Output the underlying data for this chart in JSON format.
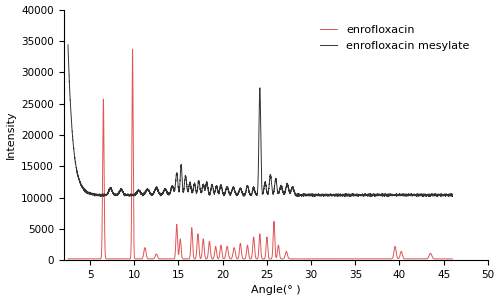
{
  "title": "",
  "xlabel": "Angle(° )",
  "ylabel": "Intensity",
  "xlim": [
    2,
    50
  ],
  "ylim": [
    0,
    40000
  ],
  "yticks": [
    0,
    5000,
    10000,
    15000,
    20000,
    25000,
    30000,
    35000,
    40000
  ],
  "xticks": [
    5,
    10,
    15,
    20,
    25,
    30,
    35,
    40,
    45,
    50
  ],
  "enrofloxacin_color": "#e05555",
  "mesylate_color": "#333333",
  "legend_labels": [
    "enrofloxacin",
    "enrofloxacin mesylate"
  ],
  "background_color": "#ffffff"
}
